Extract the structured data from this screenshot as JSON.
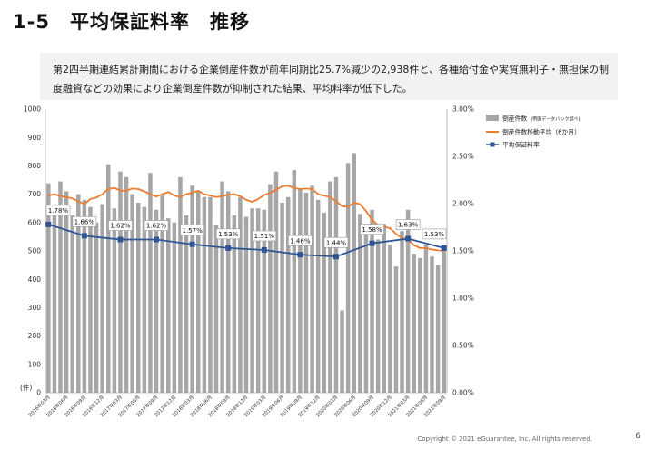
{
  "page": {
    "title": "1-5　平均保証料率　推移",
    "summary": "第2四半期連結累計期間における企業倒産件数が前年同期比25.7%減少の2,938件と、各種給付金や実質無利子・無担保の制度融資などの効果により企業倒産件数が抑制された結果、平均料率が低下した。",
    "copyright": "Copyright © 2021 eGuarantee, Inc. All rights reserved.",
    "page_number": "6"
  },
  "chart_data": {
    "type": "bar+line",
    "title": "",
    "xlabel": "",
    "ylabel": "(件)",
    "ylim": [
      0,
      1000
    ],
    "y2lim": [
      0,
      0.03
    ],
    "y_ticks": [
      "0",
      "100",
      "200",
      "300",
      "400",
      "500",
      "600",
      "700",
      "800",
      "900",
      "1000"
    ],
    "y2_ticks": [
      "0.00%",
      "0.50%",
      "1.00%",
      "1.50%",
      "2.00%",
      "2.50%",
      "3.00%"
    ],
    "x_tick_labels": [
      "2016年03月",
      "2016年06月",
      "2016年09月",
      "2016年12月",
      "2017年03月",
      "2017年06月",
      "2017年09月",
      "2017年12月",
      "2018年03月",
      "2018年06月",
      "2018年09月",
      "2018年12月",
      "2019年03月",
      "2019年06月",
      "2019年09月",
      "2019年12月",
      "2020年03月",
      "2020年06月",
      "2020年09月",
      "2020年12月",
      "2021年03月",
      "2021年06月",
      "2021年09月"
    ],
    "grid": false,
    "legend_position": "top-right",
    "colors": {
      "bars": "#a6a6a6",
      "moving_average": "#ed7d31",
      "rate": "#2f5597"
    },
    "series": [
      {
        "name": "倒産件数",
        "name_note": "(帝国データバンク調べ)",
        "type": "bar",
        "axis": "left",
        "values": [
          738,
          660,
          745,
          710,
          625,
          700,
          680,
          655,
          600,
          665,
          805,
          650,
          780,
          760,
          700,
          670,
          655,
          775,
          645,
          695,
          615,
          600,
          760,
          625,
          730,
          710,
          690,
          690,
          590,
          745,
          710,
          625,
          690,
          620,
          650,
          650,
          645,
          735,
          780,
          670,
          690,
          785,
          720,
          705,
          730,
          680,
          635,
          745,
          760,
          290,
          810,
          845,
          630,
          580,
          645,
          540,
          595,
          520,
          445,
          570,
          645,
          490,
          475,
          520,
          480,
          450,
          505
        ]
      },
      {
        "name": "倒産件数移動平均（6か月）",
        "type": "line",
        "axis": "left",
        "values": [
          695,
          700,
          693,
          690,
          685,
          675,
          665,
          683,
          688,
          700,
          718,
          722,
          713,
          712,
          720,
          718,
          710,
          700,
          692,
          700,
          708,
          695,
          690,
          700,
          705,
          712,
          700,
          695,
          690,
          693,
          698,
          700,
          693,
          680,
          673,
          683,
          697,
          705,
          715,
          728,
          730,
          722,
          718,
          720,
          718,
          700,
          695,
          690,
          675,
          658,
          655,
          670,
          665,
          640,
          610,
          590,
          585,
          580,
          560,
          545,
          540,
          520,
          510,
          510,
          505,
          502,
          500
        ]
      },
      {
        "name": "平均保証料率",
        "type": "line",
        "axis": "right",
        "x_points": [
          0,
          6,
          12,
          18,
          24,
          30,
          36,
          42,
          48,
          54,
          60,
          66
        ],
        "values": [
          0.0178,
          0.0166,
          0.0162,
          0.0162,
          0.0157,
          0.0153,
          0.0151,
          0.0146,
          0.0144,
          0.0158,
          0.0163,
          0.0153
        ],
        "labels": [
          "1.78%",
          "1.66%",
          "1.62%",
          "1.62%",
          "1.57%",
          "1.53%",
          "1.51%",
          "1.46%",
          "1.44%",
          "1.58%",
          "1.63%",
          "1.53%"
        ]
      }
    ]
  }
}
